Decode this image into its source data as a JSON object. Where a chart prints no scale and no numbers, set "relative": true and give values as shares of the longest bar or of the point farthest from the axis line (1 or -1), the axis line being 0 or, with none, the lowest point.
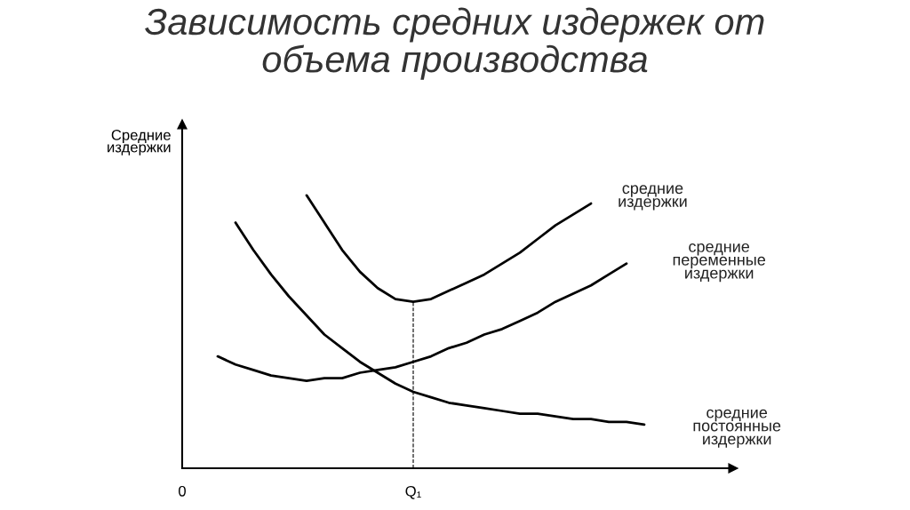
{
  "chart_data": {
    "type": "line",
    "title": "Зависимость средних издержек от\nобъема производства",
    "ylabel": "Средние\nиздержки",
    "relative": true,
    "grid": false,
    "legend": false,
    "marker": "none",
    "line_style": "solid",
    "categories": [
      "0",
      null,
      null,
      null,
      null,
      null,
      null,
      null,
      null,
      null,
      null,
      null,
      null,
      "Q₁",
      null,
      null,
      null,
      null,
      null,
      null,
      null,
      null,
      null,
      null,
      null,
      null,
      null,
      null,
      null,
      null,
      null,
      null
    ],
    "series": [
      {
        "name": "средние\nиздержки",
        "color": "#000000",
        "values": [
          null,
          null,
          null,
          null,
          null,
          null,
          null,
          1.0,
          0.9,
          0.8,
          0.72,
          0.66,
          0.62,
          0.61,
          0.62,
          0.65,
          0.68,
          0.71,
          0.75,
          0.79,
          0.84,
          0.89,
          0.93,
          0.97,
          null,
          null,
          null,
          null,
          null,
          null,
          null,
          null
        ]
      },
      {
        "name": "средние\nпеременные\nиздержки",
        "color": "#000000",
        "values": [
          null,
          null,
          0.41,
          0.38,
          0.36,
          0.34,
          0.33,
          0.32,
          0.33,
          0.33,
          0.35,
          0.36,
          0.37,
          0.39,
          0.41,
          0.44,
          0.46,
          0.49,
          0.51,
          0.54,
          0.57,
          0.61,
          0.64,
          0.67,
          0.71,
          0.75,
          null,
          null,
          null,
          null,
          null,
          null
        ]
      },
      {
        "name": "средние\nпостоянные\nиздержки",
        "color": "#000000",
        "values": [
          null,
          null,
          null,
          0.9,
          0.8,
          0.71,
          0.63,
          0.56,
          0.49,
          0.44,
          0.39,
          0.35,
          0.31,
          0.28,
          0.26,
          0.24,
          0.23,
          0.22,
          0.21,
          0.2,
          0.2,
          0.19,
          0.18,
          0.18,
          0.17,
          0.17,
          0.16,
          null,
          null,
          null,
          null,
          null
        ]
      }
    ],
    "ref_lines": [
      {
        "axis": "x",
        "value": "Q₁",
        "line_style": "dashed",
        "color": "#000000"
      }
    ]
  }
}
